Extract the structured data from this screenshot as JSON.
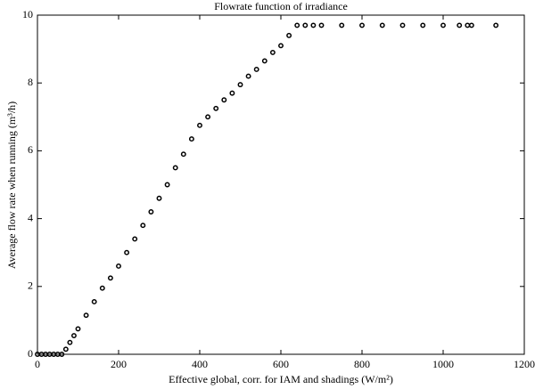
{
  "chart_data": {
    "type": "scatter",
    "title": "Flowrate function of irradiance",
    "x_label": "Effective global, corr. for IAM and shadings (W/m²)",
    "y_label": "Average flow rate when running (m³/h)",
    "x": [
      0,
      10,
      20,
      30,
      40,
      50,
      60,
      70,
      80,
      90,
      100,
      120,
      140,
      160,
      180,
      200,
      220,
      240,
      260,
      280,
      300,
      320,
      340,
      360,
      380,
      400,
      420,
      440,
      460,
      480,
      500,
      520,
      540,
      560,
      580,
      600,
      620,
      640,
      660,
      680,
      700,
      750,
      800,
      850,
      900,
      950,
      1000,
      1040,
      1060,
      1070,
      1130
    ],
    "values": [
      0,
      0,
      0,
      0,
      0,
      0,
      0,
      0.15,
      0.35,
      0.55,
      0.75,
      1.15,
      1.55,
      1.95,
      2.25,
      2.6,
      3.0,
      3.4,
      3.8,
      4.2,
      4.6,
      5.0,
      5.5,
      5.9,
      6.35,
      6.75,
      7.0,
      7.25,
      7.5,
      7.7,
      7.95,
      8.2,
      8.4,
      8.65,
      8.9,
      9.1,
      9.4,
      9.7,
      9.7,
      9.7,
      9.7,
      9.7,
      9.7,
      9.7,
      9.7,
      9.7,
      9.7,
      9.7,
      9.7,
      9.7,
      9.7
    ],
    "color": "#000000",
    "xlim": [
      0,
      1200
    ],
    "xticks": [
      0,
      200,
      400,
      600,
      800,
      1000,
      1200
    ],
    "ylim": [
      0,
      10
    ],
    "yticks": [
      0,
      2,
      4,
      6,
      8,
      10
    ],
    "grid": false
  }
}
